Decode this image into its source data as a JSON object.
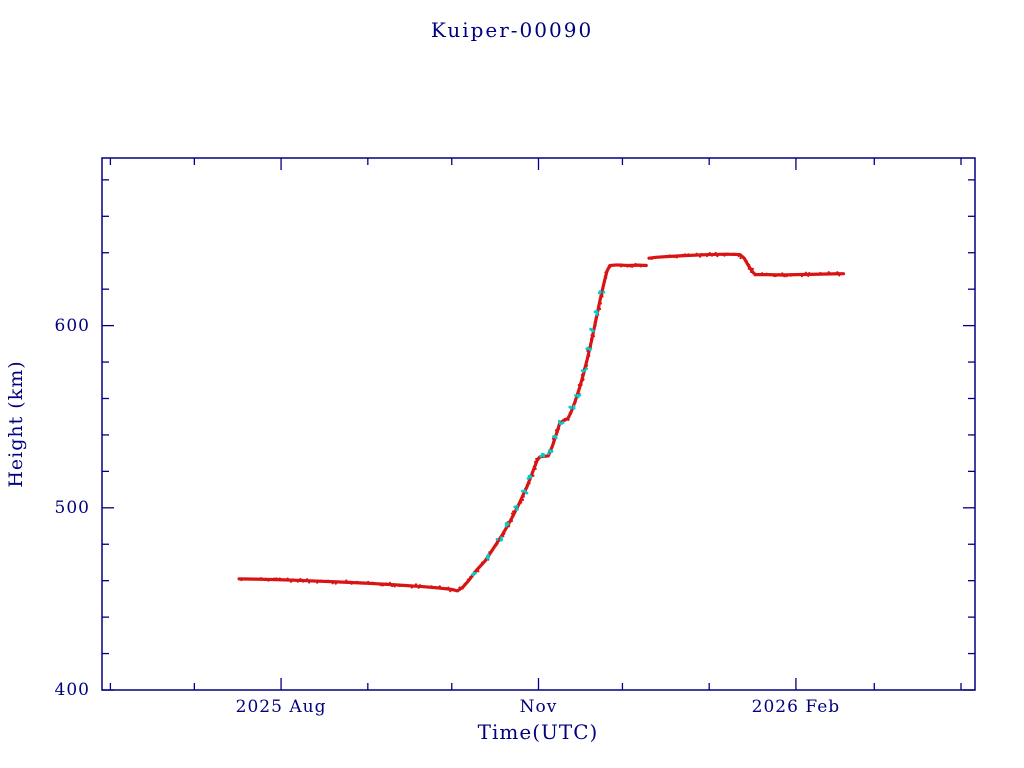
{
  "header": {
    "title": "Kuiper-00090"
  },
  "colors": {
    "background": "#ffffff",
    "axis": "#000080",
    "text": "#000080",
    "series_red": "#d91414",
    "series_cyan": "#00cfcf"
  },
  "chart_data": {
    "type": "scatter",
    "title": "Kuiper-00090",
    "xlabel": "Time(UTC)",
    "ylabel": "Height (km)",
    "grid": false,
    "legend": "none",
    "x_axis": {
      "unit": "days since 2025-07-01",
      "lim": [
        -33,
        279
      ],
      "major_ticks": [
        {
          "pos": 31,
          "label": "2025 Aug"
        },
        {
          "pos": 123,
          "label": "Nov"
        },
        {
          "pos": 215,
          "label": "2026 Feb"
        }
      ],
      "minor_ticks": [
        -30,
        0,
        62,
        92,
        153,
        184,
        243,
        274
      ]
    },
    "y_axis": {
      "lim": [
        400,
        692
      ],
      "major_ticks": [
        400,
        500,
        600
      ],
      "minor_step": 20
    },
    "series": [
      {
        "name": "height-primary",
        "marker": "dense-points",
        "color": "#d91414",
        "segments": [
          [
            [
              16,
              461
            ],
            [
              24,
              460.8
            ],
            [
              31,
              460.5
            ],
            [
              40,
              460
            ],
            [
              50,
              459.4
            ],
            [
              62,
              458.6
            ],
            [
              72,
              457.7
            ],
            [
              82,
              456.7
            ],
            [
              88,
              455.9
            ],
            [
              92,
              455.2
            ],
            [
              94,
              454.4
            ],
            [
              96,
              456.5
            ],
            [
              98,
              460
            ],
            [
              101,
              466
            ],
            [
              104,
              471
            ],
            [
              107,
              478
            ],
            [
              110,
              485
            ],
            [
              113,
              493
            ],
            [
              116,
              502
            ],
            [
              119,
              512
            ],
            [
              121,
              520
            ],
            [
              122.5,
              526
            ],
            [
              123.5,
              528
            ],
            [
              126.5,
              528.5
            ],
            [
              128,
              534
            ],
            [
              129.5,
              541
            ],
            [
              130.5,
              546
            ],
            [
              132,
              548
            ],
            [
              133.5,
              549
            ],
            [
              134.5,
              552
            ],
            [
              136,
              558
            ],
            [
              137.5,
              565
            ],
            [
              139,
              573
            ],
            [
              140.5,
              582
            ],
            [
              142,
              592
            ],
            [
              143.5,
              603
            ],
            [
              145,
              614
            ],
            [
              146.5,
              624
            ],
            [
              147.5,
              630
            ],
            [
              148.5,
              633
            ],
            [
              151,
              633.3
            ],
            [
              155,
              633
            ],
            [
              159,
              633.2
            ],
            [
              161.5,
              633
            ]
          ],
          [
            [
              162.5,
              637
            ],
            [
              165,
              637.5
            ],
            [
              170,
              638
            ],
            [
              176,
              638.5
            ],
            [
              184,
              639
            ],
            [
              190,
              639.2
            ],
            [
              195,
              639
            ],
            [
              196.5,
              637
            ],
            [
              198,
              633
            ],
            [
              199.5,
              629.5
            ],
            [
              200.5,
              628
            ],
            [
              205,
              628
            ],
            [
              210,
              627.8
            ],
            [
              215,
              628
            ],
            [
              222,
              628.2
            ],
            [
              228,
              628.4
            ],
            [
              232,
              628.5
            ]
          ]
        ]
      },
      {
        "name": "height-secondary",
        "marker": "points",
        "color": "#00cfcf",
        "points": [
          [
            100,
            464
          ],
          [
            105,
            473
          ],
          [
            109,
            483
          ],
          [
            112,
            491
          ],
          [
            115,
            500
          ],
          [
            118,
            509
          ],
          [
            120,
            517
          ],
          [
            124,
            528.5
          ],
          [
            127,
            530.5
          ],
          [
            129,
            539
          ],
          [
            131,
            547
          ],
          [
            135,
            555
          ],
          [
            137,
            562
          ],
          [
            139.5,
            576
          ],
          [
            141,
            587
          ],
          [
            142.5,
            597
          ],
          [
            144,
            607
          ],
          [
            145.5,
            618
          ]
        ]
      }
    ]
  }
}
